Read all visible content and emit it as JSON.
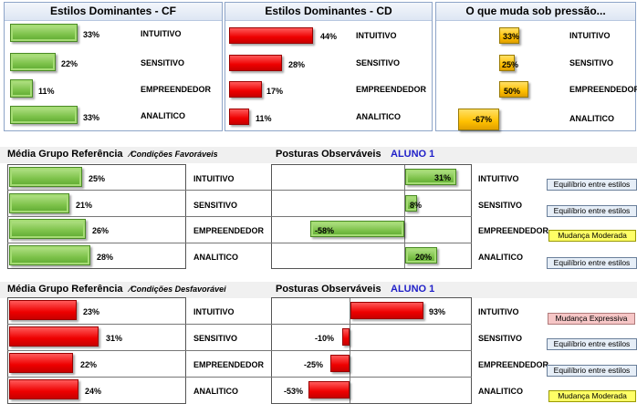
{
  "top_panels": [
    {
      "title": "Estilos Dominantes - CF",
      "color": "#7dc24a",
      "items": [
        {
          "label": "INTUITIVO",
          "value": 33,
          "text": "33%"
        },
        {
          "label": "SENSITIVO",
          "value": 22,
          "text": "22%"
        },
        {
          "label": "EMPREENDEDOR",
          "value": 11,
          "text": "11%"
        },
        {
          "label": "ANALITICO",
          "value": 33,
          "text": "33%"
        }
      ]
    },
    {
      "title": "Estilos Dominantes - CD",
      "color": "#ee0000",
      "items": [
        {
          "label": "INTUITIVO",
          "value": 44,
          "text": "44%"
        },
        {
          "label": "SENSITIVO",
          "value": 28,
          "text": "28%"
        },
        {
          "label": "EMPREENDEDOR",
          "value": 17,
          "text": "17%"
        },
        {
          "label": "ANALITICO",
          "value": 11,
          "text": "11%"
        }
      ]
    },
    {
      "title": "O que muda sob pressão...",
      "color": "#ffc000",
      "items": [
        {
          "label": "INTUITIVO",
          "value": 33,
          "text": "33%"
        },
        {
          "label": "SENSITIVO",
          "value": 25,
          "text": "25%"
        },
        {
          "label": "EMPREENDEDOR",
          "value": 50,
          "text": "50%"
        },
        {
          "label": "ANALITICO",
          "value": -67,
          "text": "-67%"
        }
      ]
    }
  ],
  "sections": [
    {
      "title": "Média Grupo Referência",
      "subtitle": "⁄Condições Favoráveis",
      "postures": "Posturas Observáveis",
      "student": "ALUNO 1",
      "ref_color": "#7dc24a",
      "rows": [
        {
          "label": "INTUITIVO",
          "ref": 25,
          "ref_text": "25%",
          "obs": 31,
          "obs_text": "31%",
          "status": "Equilíbrio entre estilos",
          "status_type": "eq"
        },
        {
          "label": "SENSITIVO",
          "ref": 21,
          "ref_text": "21%",
          "obs": 8,
          "obs_text": "8%",
          "status": "Equilíbrio entre estilos",
          "status_type": "eq"
        },
        {
          "label": "EMPREENDEDOR",
          "ref": 26,
          "ref_text": "26%",
          "obs": -58,
          "obs_text": "-58%",
          "status": "Mudança Moderada",
          "status_type": "mod"
        },
        {
          "label": "ANALITICO",
          "ref": 28,
          "ref_text": "28%",
          "obs": 20,
          "obs_text": "20%",
          "status": "Equilíbrio entre estilos",
          "status_type": "eq"
        }
      ]
    },
    {
      "title": "Média Grupo Referência",
      "subtitle": "⁄Condições Desfavorávei",
      "postures": "Posturas Observáveis",
      "student": "ALUNO 1",
      "ref_color": "#ee0000",
      "rows": [
        {
          "label": "INTUITIVO",
          "ref": 23,
          "ref_text": "23%",
          "obs": 93,
          "obs_text": "93%",
          "status": "Mudança Expressiva",
          "status_type": "exp"
        },
        {
          "label": "SENSITIVO",
          "ref": 31,
          "ref_text": "31%",
          "obs": -10,
          "obs_text": "-10%",
          "status": "Equilíbrio entre estilos",
          "status_type": "eq"
        },
        {
          "label": "EMPREENDEDOR",
          "ref": 22,
          "ref_text": "22%",
          "obs": -25,
          "obs_text": "-25%",
          "status": "Equilíbrio entre estilos",
          "status_type": "eq"
        },
        {
          "label": "ANALITICO",
          "ref": 24,
          "ref_text": "24%",
          "obs": -53,
          "obs_text": "-53%",
          "status": "Mudança Moderada",
          "status_type": "mod"
        }
      ]
    }
  ]
}
